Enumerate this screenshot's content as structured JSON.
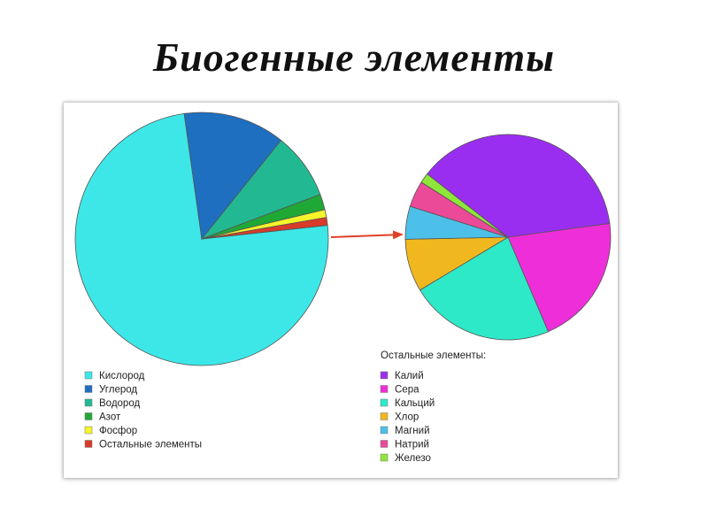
{
  "title": "Биогенные элементы",
  "chart_data": [
    {
      "type": "pie",
      "title": "",
      "slices": [
        {
          "label": "Кислород",
          "value": 74.5,
          "color": "#3de7e7"
        },
        {
          "label": "Углерод",
          "value": 13.0,
          "color": "#1e6fc0"
        },
        {
          "label": "Водород",
          "value": 8.5,
          "color": "#22b992"
        },
        {
          "label": "Азот",
          "value": 2.0,
          "color": "#1fa836"
        },
        {
          "label": "Фосфор",
          "value": 1.0,
          "color": "#f5f52a"
        },
        {
          "label": "Остальные элементы",
          "value": 1.0,
          "color": "#d93a2a"
        }
      ],
      "legend_placement": "bottom-left"
    },
    {
      "type": "pie",
      "title": "Остальные элементы:",
      "slices": [
        {
          "label": "Калий",
          "value": 36.0,
          "color": "#9a2ef0"
        },
        {
          "label": "Сера",
          "value": 20.0,
          "color": "#ee2ed8"
        },
        {
          "label": "Кальций",
          "value": 22.0,
          "color": "#2ee9c8"
        },
        {
          "label": "Хлор",
          "value": 8.0,
          "color": "#f0b81e"
        },
        {
          "label": "Магний",
          "value": 5.0,
          "color": "#4cc0e8"
        },
        {
          "label": "Натрий",
          "value": 4.0,
          "color": "#ea4a98"
        },
        {
          "label": "Железо",
          "value": 1.5,
          "color": "#8ee63a"
        }
      ],
      "legend_placement": "bottom-right"
    }
  ]
}
